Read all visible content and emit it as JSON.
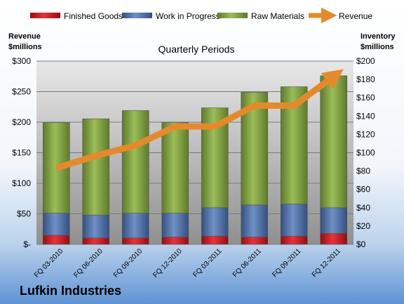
{
  "chart_data": {
    "type": "bar",
    "title": "Quarterly Periods",
    "categories": [
      "FQ 03-2010",
      "FQ 06-2010",
      "FQ 09-2010",
      "FQ 12-2010",
      "FQ 03-2011",
      "FQ 06-2011",
      "FQ 09-2011",
      "FQ 12-2011"
    ],
    "series": [
      {
        "name": "Finished Goods",
        "axis": "right",
        "stacked": true,
        "color": "#c0161e",
        "values": [
          10,
          7,
          7,
          8,
          9,
          8,
          9,
          12
        ]
      },
      {
        "name": "Work in Progress",
        "axis": "right",
        "stacked": true,
        "color": "#4f6fa6",
        "values": [
          24,
          25,
          27,
          26,
          31,
          35,
          35,
          28
        ]
      },
      {
        "name": "Raw Materials",
        "axis": "right",
        "stacked": true,
        "color": "#87a84a",
        "values": [
          99,
          105,
          112,
          99,
          109,
          123,
          128,
          144
        ]
      },
      {
        "name": "Revenue",
        "type": "line",
        "axis": "left",
        "color": "#e58a2c",
        "values": [
          125,
          145,
          162,
          193,
          193,
          227,
          227,
          275
        ]
      }
    ],
    "left_axis": {
      "title_line1": "Revenue",
      "title_line2": "$millions",
      "min": 0,
      "max": 300,
      "step": 50,
      "tick_labels": [
        "$-",
        "$50",
        "$100",
        "$150",
        "$200",
        "$250",
        "$300"
      ]
    },
    "right_axis": {
      "title_line1": "Inventory",
      "title_line2": "$millions",
      "min": 0,
      "max": 200,
      "step": 20,
      "tick_labels": [
        "$0",
        "$20",
        "$40",
        "$60",
        "$80",
        "$100",
        "$120",
        "$140",
        "$160",
        "$180",
        "$200"
      ]
    },
    "legend_position": "top",
    "grid": true
  },
  "company_name": "Lufkin Industries"
}
